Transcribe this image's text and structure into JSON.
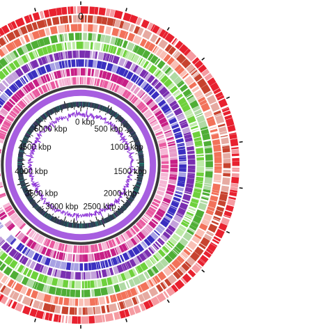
{
  "figure": {
    "genome_size_kbp": 5500,
    "origin_label": "0",
    "ticks": [
      {
        "value_kbp": 0,
        "label": "0 kbp"
      },
      {
        "value_kbp": 500,
        "label": "500 kbp"
      },
      {
        "value_kbp": 1000,
        "label": "1000 kbp"
      },
      {
        "value_kbp": 1500,
        "label": "1500 kbp"
      },
      {
        "value_kbp": 2000,
        "label": "2000 kbp"
      },
      {
        "value_kbp": 2500,
        "label": "2500 kbp"
      },
      {
        "value_kbp": 3000,
        "label": "3000 kbp"
      },
      {
        "value_kbp": 3500,
        "label": "3500 kbp"
      },
      {
        "value_kbp": 4000,
        "label": "4000 kbp"
      },
      {
        "value_kbp": 4500,
        "label": "4500 kbp"
      },
      {
        "value_kbp": 5000,
        "label": "5000 kbp"
      }
    ],
    "rings": [
      {
        "color": "#e8212f"
      },
      {
        "color": "#c7432f"
      },
      {
        "color": "#f2725a"
      },
      {
        "color": "#4fae36"
      },
      {
        "color": "#6fd13c"
      },
      {
        "color": "#7a2fb0"
      },
      {
        "color": "#3b2fc0"
      },
      {
        "color": "#c71f86"
      },
      {
        "color": "#e95aa0"
      }
    ],
    "colors": {
      "backbone": "#3a3a3a",
      "reference_ring": "#a75ee0",
      "gc_skew": "#8a2fd6",
      "gc_content": "#111111",
      "inner_ring": "#2f3d4f"
    }
  }
}
